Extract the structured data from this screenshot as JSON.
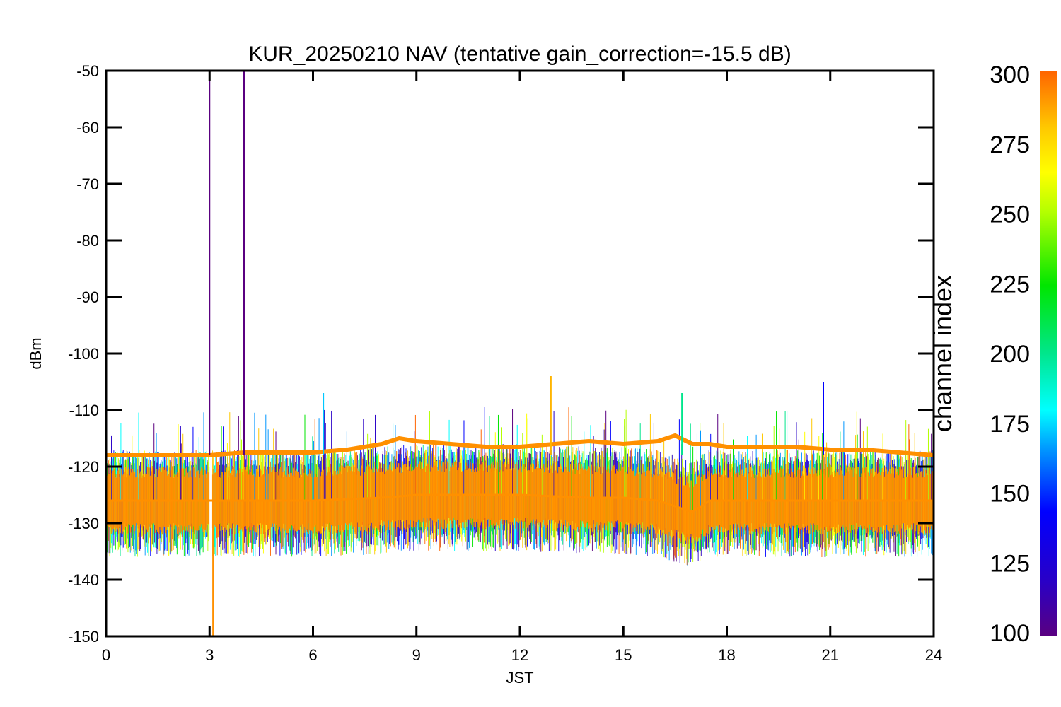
{
  "chart_data": {
    "type": "line",
    "title": "KUR_20250210 NAV (tentative gain_correction=-15.5 dB)",
    "xlabel": "JST",
    "ylabel": "dBm",
    "xlim": [
      0,
      24
    ],
    "ylim": [
      -150,
      -50
    ],
    "xticks": [
      "0",
      "3",
      "6",
      "9",
      "12",
      "15",
      "18",
      "21",
      "24"
    ],
    "yticks": [
      "-50",
      "-60",
      "-70",
      "-80",
      "-90",
      "-100",
      "-110",
      "-120",
      "-130",
      "-140",
      "-150"
    ],
    "grid": false,
    "colorbar": {
      "label": "channel index",
      "range": [
        100,
        300
      ],
      "ticks": [
        "300",
        "275",
        "250",
        "225",
        "200",
        "175",
        "150",
        "125",
        "100"
      ],
      "colormap": "rainbow",
      "colors": [
        "#5a0080",
        "#2800c8",
        "#0000ff",
        "#0096ff",
        "#00ffff",
        "#00e68c",
        "#00e600",
        "#b4ff00",
        "#ffff00",
        "#ffc800",
        "#ff6400"
      ]
    },
    "series": [
      {
        "color": "#ff9000",
        "x": [
          0,
          1,
          2,
          3,
          4,
          5,
          6,
          7,
          8,
          8.5,
          9,
          10,
          11,
          12,
          13,
          14,
          15,
          16,
          16.5,
          17,
          17.5,
          18,
          19,
          20,
          21,
          22,
          23,
          24
        ],
        "y": [
          -118,
          -118,
          -118,
          -118,
          -117.5,
          -117.5,
          -117.5,
          -117,
          -116,
          -115,
          -115.5,
          -116,
          -116.5,
          -116.5,
          -116,
          -115.5,
          -116,
          -115.5,
          -114.5,
          -116,
          -116,
          -116.5,
          -116.5,
          -116.5,
          -117,
          -117,
          -117.5,
          -118
        ]
      },
      {
        "color": "#ff9000",
        "x": [
          0,
          2,
          4,
          6,
          8,
          9,
          10,
          12,
          14,
          15,
          16,
          16.5,
          17,
          17.5,
          18,
          20,
          22,
          24
        ],
        "y": [
          -126,
          -126,
          -126,
          -126,
          -125.5,
          -125,
          -125,
          -125,
          -125.5,
          -125.5,
          -126,
          -127,
          -128,
          -126,
          -126,
          -126,
          -126,
          -126
        ]
      }
    ],
    "spikes": [
      {
        "x": 3.0,
        "y": -50,
        "color": "#5a0080"
      },
      {
        "x": 4.0,
        "y": -50,
        "color": "#5a0080"
      },
      {
        "x": 3.1,
        "y": -150,
        "color": "#ff9000"
      },
      {
        "x": 6.3,
        "y": -107,
        "color": "#00c8ff"
      },
      {
        "x": 12.9,
        "y": -104,
        "color": "#ffb400"
      },
      {
        "x": 20.8,
        "y": -105,
        "color": "#0000ff"
      },
      {
        "x": 16.7,
        "y": -107,
        "color": "#00e68c"
      }
    ]
  }
}
